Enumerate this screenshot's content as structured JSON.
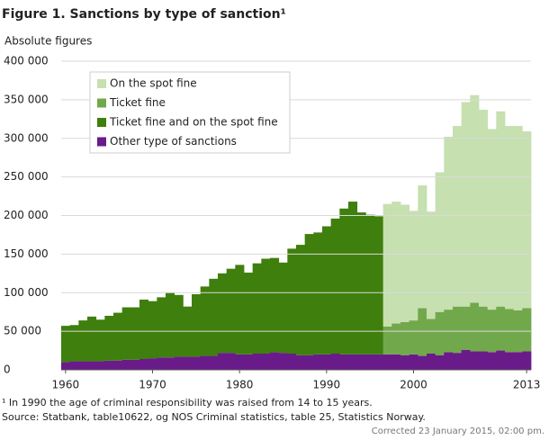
{
  "chart_data": {
    "type": "stacked-bar",
    "title": "Figure 1. Sanctions by type of sanction¹",
    "y_label": "Absolute figures",
    "footnote": "¹ In 1990 the age of criminal responsibility was raised from 14 to 15 years.",
    "source": "Source: Statbank, table10622, og NOS Criminal statistics, table 25, Statistics Norway.",
    "corrected": "Corrected 23 January 2015, 02:00 pm.",
    "x": [
      1960,
      1961,
      1962,
      1963,
      1964,
      1965,
      1966,
      1967,
      1968,
      1969,
      1970,
      1971,
      1972,
      1973,
      1974,
      1975,
      1976,
      1977,
      1978,
      1979,
      1980,
      1981,
      1982,
      1983,
      1984,
      1985,
      1986,
      1987,
      1988,
      1989,
      1990,
      1991,
      1992,
      1993,
      1994,
      1995,
      1996,
      1997,
      1998,
      1999,
      2000,
      2001,
      2002,
      2003,
      2004,
      2005,
      2006,
      2007,
      2008,
      2009,
      2010,
      2011,
      2012,
      2013
    ],
    "series": [
      {
        "name": "On the spot fine",
        "color": "#c6e0b0",
        "values": [
          null,
          null,
          null,
          null,
          null,
          null,
          null,
          null,
          null,
          null,
          null,
          null,
          null,
          null,
          null,
          null,
          null,
          null,
          null,
          null,
          null,
          null,
          null,
          null,
          null,
          null,
          null,
          null,
          null,
          null,
          null,
          null,
          null,
          null,
          null,
          null,
          null,
          159000,
          158000,
          152000,
          142000,
          159000,
          139000,
          181000,
          224000,
          234000,
          265000,
          269000,
          255000,
          234000,
          253000,
          237000,
          239000,
          229000
        ]
      },
      {
        "name": "Ticket fine",
        "color": "#72a84c",
        "values": [
          null,
          null,
          null,
          null,
          null,
          null,
          null,
          null,
          null,
          null,
          null,
          null,
          null,
          null,
          null,
          null,
          null,
          null,
          null,
          null,
          null,
          null,
          null,
          null,
          null,
          null,
          null,
          null,
          null,
          null,
          null,
          null,
          null,
          null,
          null,
          null,
          null,
          36000,
          40000,
          43000,
          44000,
          62000,
          45000,
          56000,
          55000,
          60000,
          56000,
          63000,
          58000,
          55000,
          57000,
          56000,
          54000,
          56000
        ]
      },
      {
        "name": "Ticket fine and on the spot fine",
        "color": "#3f7f0d",
        "values": [
          47000,
          47000,
          53000,
          58000,
          54000,
          58000,
          62000,
          68000,
          68000,
          77000,
          74000,
          78000,
          84000,
          80000,
          65000,
          81000,
          90000,
          100000,
          103000,
          109000,
          116000,
          106000,
          117000,
          123000,
          122000,
          117000,
          136000,
          143000,
          157000,
          158000,
          166000,
          175000,
          189000,
          198000,
          184000,
          181000,
          179000,
          null,
          null,
          null,
          null,
          null,
          null,
          null,
          null,
          null,
          null,
          null,
          null,
          null,
          null,
          null,
          null,
          null
        ]
      },
      {
        "name": "Other type of sanctions",
        "color": "#6a1b8a",
        "values": [
          10000,
          11000,
          11000,
          11000,
          11000,
          12000,
          12000,
          13000,
          13000,
          14000,
          15000,
          16000,
          16000,
          17000,
          17000,
          17000,
          18000,
          18000,
          22000,
          22000,
          20000,
          20000,
          21000,
          21000,
          23000,
          22000,
          21000,
          19000,
          19000,
          20000,
          20000,
          21000,
          20000,
          20000,
          20000,
          20000,
          20000,
          20000,
          20000,
          19000,
          20000,
          18000,
          21000,
          19000,
          23000,
          22000,
          26000,
          24000,
          24000,
          23000,
          25000,
          23000,
          23000,
          24000
        ]
      }
    ],
    "xlim": [
      1959.5,
      2013.5
    ],
    "xticks": [
      1960,
      1970,
      1980,
      1990,
      2000,
      2013
    ],
    "ylim": [
      0,
      400000
    ],
    "yticks": [
      0,
      {
        "value": 50000,
        "label": "50 000"
      },
      {
        "value": 100000,
        "label": "100 000"
      },
      {
        "value": 150000,
        "label": "150 000"
      },
      {
        "value": 200000,
        "label": "200 000"
      },
      {
        "value": 250000,
        "label": "250 000"
      },
      {
        "value": 300000,
        "label": "300 000"
      },
      {
        "value": 350000,
        "label": "350 000"
      },
      {
        "value": 400000,
        "label": "400 000"
      }
    ],
    "grid": true,
    "legend": "upper left"
  }
}
